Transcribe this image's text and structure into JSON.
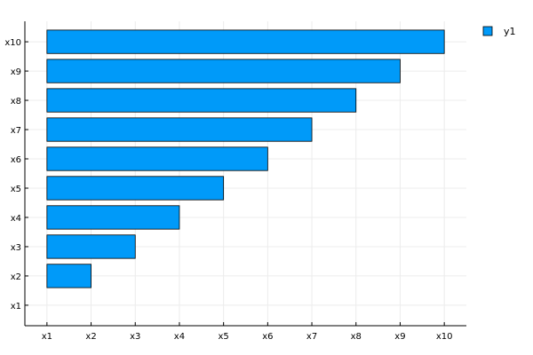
{
  "chart_data": {
    "type": "bar",
    "orientation": "horizontal",
    "categories": [
      "x1",
      "x2",
      "x3",
      "x4",
      "x5",
      "x6",
      "x7",
      "x8",
      "x9",
      "x10"
    ],
    "series": [
      {
        "name": "y1",
        "color": "#009af9",
        "bars": [
          {
            "category": "x2",
            "value": "x2"
          },
          {
            "category": "x3",
            "value": "x3"
          },
          {
            "category": "x4",
            "value": "x4"
          },
          {
            "category": "x5",
            "value": "x5"
          },
          {
            "category": "x6",
            "value": "x6"
          },
          {
            "category": "x7",
            "value": "x7"
          },
          {
            "category": "x8",
            "value": "x8"
          },
          {
            "category": "x9",
            "value": "x9"
          },
          {
            "category": "x10",
            "value": "x10"
          }
        ]
      }
    ],
    "x_ticks": [
      "x1",
      "x2",
      "x3",
      "x4",
      "x5",
      "x6",
      "x7",
      "x8",
      "x9",
      "x10"
    ],
    "y_ticks": [
      "x1",
      "x2",
      "x3",
      "x4",
      "x5",
      "x6",
      "x7",
      "x8",
      "x9",
      "x10"
    ],
    "grid": true,
    "legend_position": "top-right",
    "bar_edge_color": "#000000"
  }
}
